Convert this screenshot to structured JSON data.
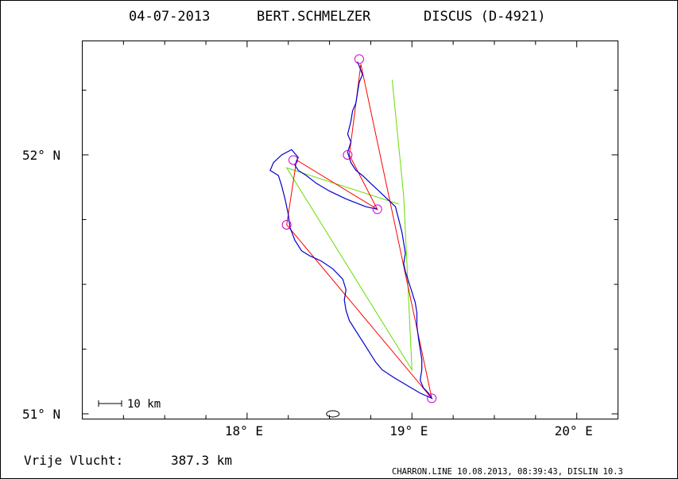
{
  "header": {
    "date": "04-07-2013",
    "pilot": "BERT.SCHMELZER",
    "glider": "DISCUS (D-4921)"
  },
  "axes": {
    "x_ticks": [
      {
        "lon": 18,
        "label": "18° E"
      },
      {
        "lon": 19,
        "label": "19° E"
      },
      {
        "lon": 20,
        "label": "20° E"
      }
    ],
    "y_ticks": [
      {
        "lat": 52,
        "label": "52° N"
      },
      {
        "lat": 51,
        "label": "51° N"
      }
    ],
    "lon_range": [
      17.0,
      20.25
    ],
    "lat_range": [
      50.98,
      52.44
    ]
  },
  "scale_bar": {
    "label": "10 km",
    "km": 10
  },
  "footer": {
    "distance_label": "Vrije Vlucht:",
    "distance_value": "387.3 km",
    "credit": "CHARRON.LINE 10.08.2013, 08:39:43, DISLIN 10.3"
  },
  "colors": {
    "track": "#0000cc",
    "task": "#ff0000",
    "optimized": "#66dd00",
    "turnpoint": "#cc00cc",
    "frame": "#000000"
  },
  "map": {
    "turnpoints": [
      {
        "lon": 18.68,
        "lat": 52.37
      },
      {
        "lon": 18.61,
        "lat": 52.0
      },
      {
        "lon": 18.28,
        "lat": 51.98
      },
      {
        "lon": 18.79,
        "lat": 51.79
      },
      {
        "lon": 18.24,
        "lat": 51.73
      },
      {
        "lon": 19.12,
        "lat": 51.06
      }
    ],
    "task_polyline": [
      [
        18.69,
        52.35
      ],
      [
        19.12,
        51.06
      ],
      [
        18.24,
        51.73
      ],
      [
        18.3,
        51.98
      ],
      [
        18.79,
        51.79
      ],
      [
        18.62,
        52.0
      ],
      [
        18.69,
        52.35
      ]
    ],
    "optimized_polyline": [
      [
        18.88,
        52.29
      ],
      [
        18.95,
        51.84
      ],
      [
        19.0,
        51.17
      ],
      [
        18.24,
        51.95
      ],
      [
        18.92,
        51.81
      ]
    ],
    "track_polyline": [
      [
        18.67,
        52.36
      ],
      [
        18.7,
        52.31
      ],
      [
        18.68,
        52.28
      ],
      [
        18.67,
        52.24
      ],
      [
        18.66,
        52.2
      ],
      [
        18.64,
        52.17
      ],
      [
        18.63,
        52.13
      ],
      [
        18.61,
        52.08
      ],
      [
        18.63,
        52.05
      ],
      [
        18.61,
        52.01
      ],
      [
        18.63,
        51.97
      ],
      [
        18.66,
        51.94
      ],
      [
        18.7,
        51.92
      ],
      [
        18.75,
        51.89
      ],
      [
        18.8,
        51.86
      ],
      [
        18.85,
        51.83
      ],
      [
        18.9,
        51.8
      ],
      [
        18.92,
        51.75
      ],
      [
        18.94,
        51.7
      ],
      [
        18.95,
        51.66
      ],
      [
        18.96,
        51.62
      ],
      [
        18.95,
        51.58
      ],
      [
        18.96,
        51.55
      ],
      [
        18.98,
        51.51
      ],
      [
        19.0,
        51.47
      ],
      [
        19.02,
        51.43
      ],
      [
        19.03,
        51.39
      ],
      [
        19.03,
        51.34
      ],
      [
        19.04,
        51.29
      ],
      [
        19.05,
        51.25
      ],
      [
        19.06,
        51.21
      ],
      [
        19.06,
        51.17
      ],
      [
        19.05,
        51.13
      ],
      [
        19.07,
        51.1
      ],
      [
        19.1,
        51.08
      ],
      [
        19.12,
        51.06
      ],
      [
        19.05,
        51.08
      ],
      [
        18.97,
        51.11
      ],
      [
        18.89,
        51.14
      ],
      [
        18.82,
        51.17
      ],
      [
        18.78,
        51.2
      ],
      [
        18.74,
        51.24
      ],
      [
        18.7,
        51.28
      ],
      [
        18.66,
        51.32
      ],
      [
        18.62,
        51.36
      ],
      [
        18.6,
        51.4
      ],
      [
        18.59,
        51.44
      ],
      [
        18.6,
        51.48
      ],
      [
        18.58,
        51.52
      ],
      [
        18.52,
        51.56
      ],
      [
        18.45,
        51.59
      ],
      [
        18.38,
        51.61
      ],
      [
        18.33,
        51.63
      ],
      [
        18.29,
        51.67
      ],
      [
        18.26,
        51.72
      ],
      [
        18.25,
        51.77
      ],
      [
        18.23,
        51.83
      ],
      [
        18.21,
        51.88
      ],
      [
        18.19,
        51.92
      ],
      [
        18.14,
        51.94
      ],
      [
        18.16,
        51.97
      ],
      [
        18.21,
        52.0
      ],
      [
        18.27,
        52.02
      ],
      [
        18.31,
        51.99
      ],
      [
        18.29,
        51.96
      ],
      [
        18.31,
        51.94
      ],
      [
        18.36,
        51.92
      ],
      [
        18.42,
        51.89
      ],
      [
        18.5,
        51.86
      ],
      [
        18.6,
        51.83
      ],
      [
        18.72,
        51.8
      ],
      [
        18.79,
        51.79
      ]
    ],
    "home_blob": {
      "lon": 18.52,
      "lat": 51.0
    }
  }
}
